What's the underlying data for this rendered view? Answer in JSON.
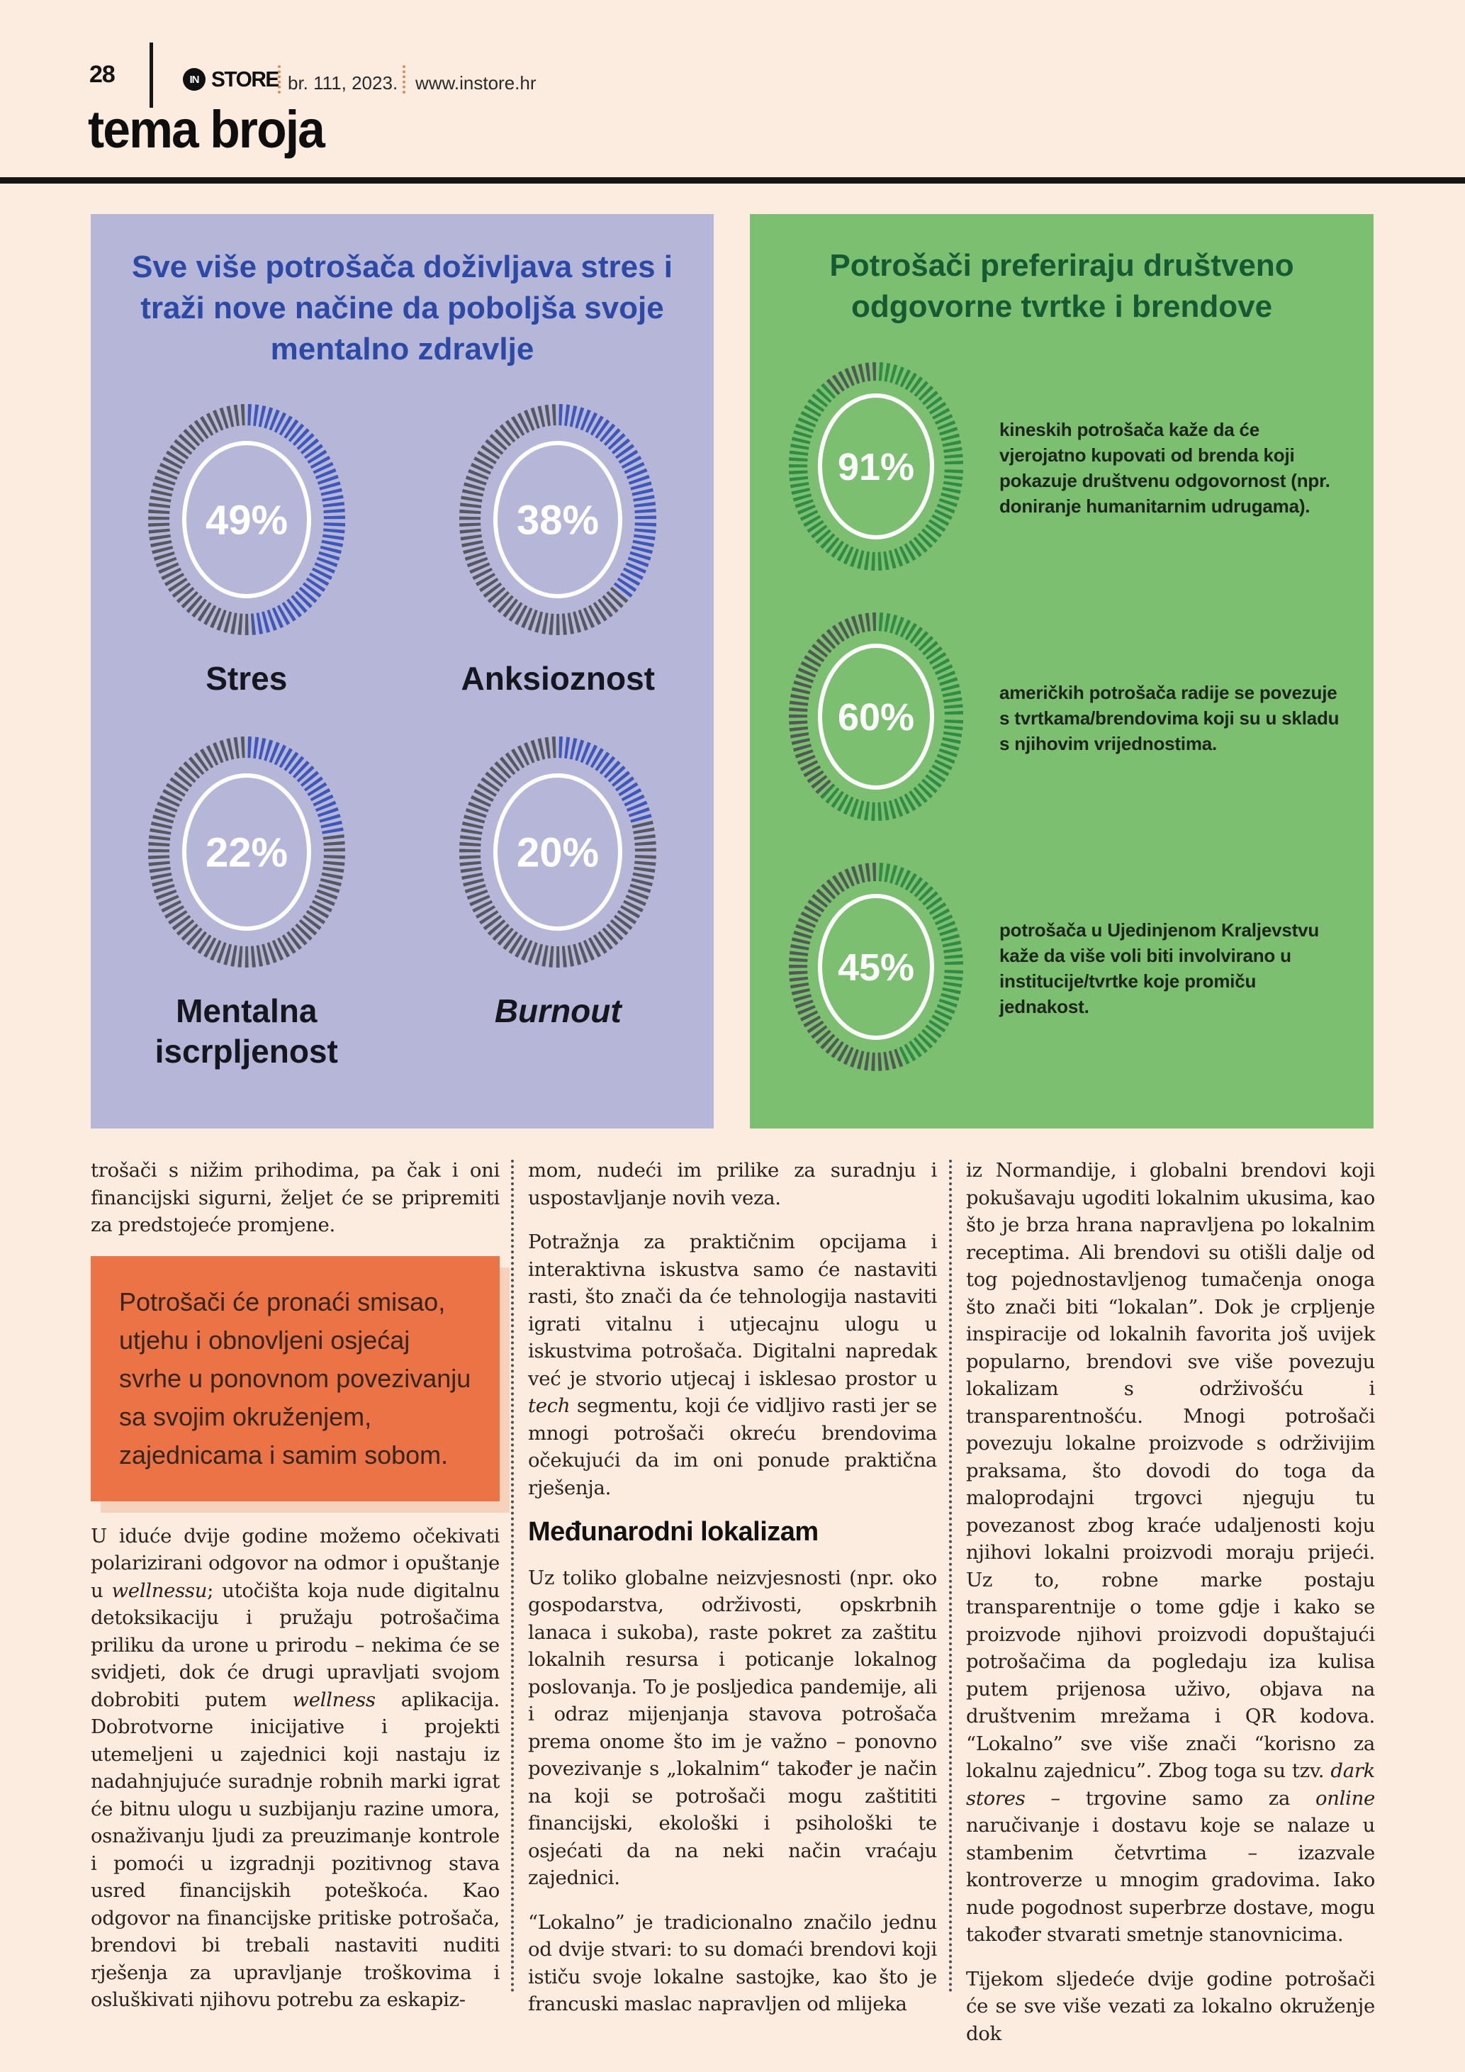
{
  "page": {
    "number": "28",
    "logo_prefix": "IN",
    "magazine": "STORE",
    "issue": "br. 111, 2023.",
    "website": "www.instore.hr",
    "section": "tema broja",
    "background": "#fcecdf"
  },
  "infographic_left": {
    "bg": "#b5b6d8",
    "accent": "#3d57ba",
    "track": "#56575f",
    "title": "Sve više potrošača doživljava stres i traži nove načine da poboljša svoje mentalno zdravlje",
    "items": [
      {
        "value": 49,
        "label_value": "49%",
        "label": "Stres",
        "italic": false
      },
      {
        "value": 38,
        "label_value": "38%",
        "label": "Anksioznost",
        "italic": false
      },
      {
        "value": 22,
        "label_value": "22%",
        "label": "Mentalna iscrpljenost",
        "italic": false
      },
      {
        "value": 20,
        "label_value": "20%",
        "label": "Burnout",
        "italic": true
      }
    ]
  },
  "infographic_right": {
    "bg": "#7dbf71",
    "accent": "#2e8c45",
    "track": "#4f5a52",
    "title": "Potrošači preferiraju društveno odgovorne tvrtke i brendove",
    "items": [
      {
        "value": 91,
        "label_value": "91%",
        "text": "kineskih potrošača kaže da će vjerojatno kupovati od brenda koji pokazuje društvenu odgovornost (npr. doniranje humanitarnim udrugama)."
      },
      {
        "value": 60,
        "label_value": "60%",
        "text": "američkih potrošača radije se povezuje s tvrtkama/brendovima koji su u skladu s njihovim vrijednostima."
      },
      {
        "value": 45,
        "label_value": "45%",
        "text": "potrošača u Ujedinjenom Kraljevstvu kaže da više voli biti involvirano u institucije/tvrtke koje promiču jednakost."
      }
    ]
  },
  "article": {
    "col1": {
      "p1": "trošači s nižim prihodima, pa čak i oni financijski sigurni, željet će se pripremiti za predstojeće promjene.",
      "callout": "Potrošači će pronaći smisao, utjehu i obnovljeni osjećaj svrhe u ponovnom povezivanju sa svojim okruženjem, zajednicama i samim sobom.",
      "p2": [
        {
          "t": "U iduće dvije godine možemo očekivati polarizirani odgovor na odmor i opuštanje u "
        },
        {
          "t": "wellnessu",
          "i": true
        },
        {
          "t": "; utočišta koja nude digitalnu detoksikaciju i pružaju potrošačima priliku da urone u prirodu – nekima će se svidjeti, dok će drugi upravljati svojom dobrobiti putem "
        },
        {
          "t": "wellness",
          "i": true
        },
        {
          "t": " aplikacija. Dobrotvorne inicijative i projekti utemeljeni u zajednici koji nastaju iz nadahnjujuće suradnje robnih marki igrat će bitnu ulogu u suzbijanju razine umora, osnaživanju ljudi za preuzimanje kontrole i pomoći u izgradnji pozitivnog stava usred financijskih poteškoća. Kao odgovor na financijske pritiske potrošača, brendovi bi trebali nastaviti nuditi rješenja za upravljanje troškovima i osluškivati njihovu potrebu za eskapiz-"
        }
      ]
    },
    "col2": {
      "p1": "mom, nudeći im prilike za suradnju i uspostavljanje novih veza.",
      "p2": [
        {
          "t": "Potražnja za praktičnim opcijama i interaktivna iskustva samo će nastaviti rasti, što znači da će tehnologija nastaviti igrati vitalnu i utjecajnu ulogu u iskustvima potrošača. Digitalni napredak već je stvorio utjecaj i isklesao prostor u "
        },
        {
          "t": "tech",
          "i": true
        },
        {
          "t": " segmentu, koji će vidljivo rasti jer se mnogi potrošači okreću brendovima očekujući da im oni ponude praktična rješenja."
        }
      ],
      "heading": "Međunarodni lokalizam",
      "p3": "Uz toliko globalne neizvjesnosti (npr. oko gospodarstva, održivosti, opskrbnih lanaca i sukoba), raste pokret za zaštitu lokalnih resursa i poticanje lokalnog poslovanja. To je posljedica pandemije, ali i odraz mijenjanja stavova potrošača prema onome što im je važno – ponovno povezivanje s „lokalnim“ također je način na koji se potrošači mogu zaštititi financijski, ekološki i psihološki te osjećati da na neki način vraćaju zajednici.",
      "p4": "“Lokalno” je tradicionalno značilo jednu od dvije stvari: to su domaći brendovi koji ističu svoje lokalne sastojke, kao što je francuski maslac napravljen od mlijeka"
    },
    "col3": {
      "p1": [
        {
          "t": "iz Normandije, i globalni brendovi koji pokušavaju ugoditi lokalnim ukusima, kao što je brza hrana napravljena po lokalnim receptima. Ali brendovi su otišli dalje od tog pojednostavljenog tumačenja onoga što znači biti “lokalan”. Dok je crpljenje inspiracije od lokalnih favorita još uvijek popularno, brendovi sve više povezuju lokalizam s održivošću i transparentnošću. Mnogi potrošači povezuju lokalne proizvode s održivijim praksama, što dovodi do toga da maloprodajni trgovci njeguju tu povezanost zbog kraće udaljenosti koju njihovi lokalni proizvodi moraju prijeći. Uz to, robne marke postaju transparentnije o tome gdje i kako se proizvode njihovi proizvodi dopuštajući potrošačima da pogledaju iza kulisa putem prijenosa uživo, objava na društvenim mrežama i QR kodova. “Lokalno” sve više znači “korisno za lokalnu zajednicu”. Zbog toga su tzv. "
        },
        {
          "t": "dark stores",
          "i": true
        },
        {
          "t": " – trgovine samo za "
        },
        {
          "t": "online",
          "i": true
        },
        {
          "t": " naručivanje i dostavu koje se nalaze u stambenim četvrtima – izazvale kontroverze u mnogim gradovima. Iako nude pogodnost superbrze dostave, mogu također stvarati smetnje stanovnicima."
        }
      ],
      "p2": "Tijekom sljedeće dvije godine potrošači će se sve više vezati za lokalno okruženje dok"
    }
  },
  "chart_data": [
    {
      "type": "pie",
      "variant": "donut-ticks",
      "title": "Sve više potrošača doživljava stres i traži nove načine da poboljša svoje mentalno zdravlje",
      "unit": "%",
      "slices": [
        {
          "label": "Stres",
          "value": 49
        },
        {
          "label": "Anksioznost",
          "value": 38
        },
        {
          "label": "Mentalna iscrpljenost",
          "value": 22
        },
        {
          "label": "Burnout",
          "value": 20
        }
      ],
      "accent_color": "#3d57ba",
      "remainder_color": "#56575f"
    },
    {
      "type": "pie",
      "variant": "donut-ticks",
      "title": "Potrošači preferiraju društveno odgovorne tvrtke i brendove",
      "unit": "%",
      "slices": [
        {
          "label": "kineskih potrošača – vjerojatna kupnja od društveno odgovornog brenda",
          "value": 91
        },
        {
          "label": "američkih potrošača – povezivanje s brendovima u skladu s vrijednostima",
          "value": 60
        },
        {
          "label": "potrošača u UK – uključenost u institucije/tvrtke koje promiču jednakost",
          "value": 45
        }
      ],
      "accent_color": "#2e8c45",
      "remainder_color": "#4f5a52"
    }
  ]
}
